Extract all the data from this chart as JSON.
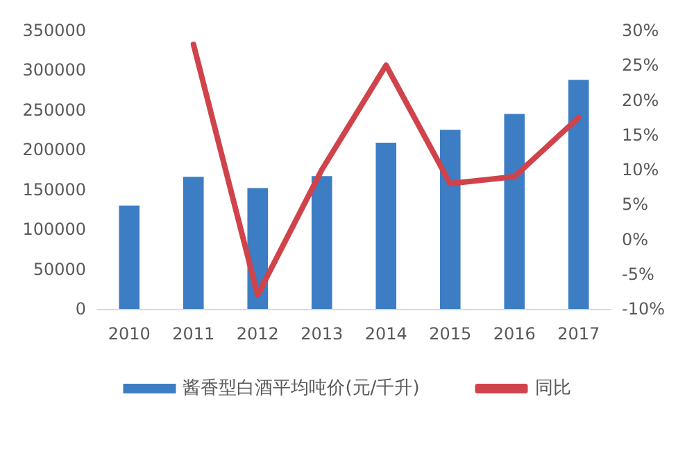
{
  "chart_data": {
    "type": "bar",
    "categories": [
      "2010",
      "2011",
      "2012",
      "2013",
      "2014",
      "2015",
      "2016",
      "2017"
    ],
    "series": [
      {
        "name": "酱香型白酒平均吨价(元/千升)",
        "color": "#3d7dc3",
        "values": [
          130000,
          166000,
          152000,
          167000,
          209000,
          225000,
          245000,
          288000
        ]
      },
      {
        "name": "同比",
        "type": "line",
        "axis": "y2",
        "color": "#d0434b",
        "values": [
          null,
          28,
          -8,
          10,
          25,
          8,
          9,
          17.5
        ]
      }
    ],
    "ylim": [
      0,
      350000
    ],
    "yticks": [
      0,
      50000,
      100000,
      150000,
      200000,
      250000,
      300000,
      350000
    ],
    "y2lim": [
      -10,
      30
    ],
    "y2ticks": [
      {
        "value": -10,
        "label": "-10%"
      },
      {
        "value": -5,
        "label": "-5%"
      },
      {
        "value": 0,
        "label": "0%"
      },
      {
        "value": 5,
        "label": "5%"
      },
      {
        "value": 10,
        "label": "10%"
      },
      {
        "value": 15,
        "label": "15%"
      },
      {
        "value": 20,
        "label": "20%"
      },
      {
        "value": 25,
        "label": "25%"
      },
      {
        "value": 30,
        "label": "30%"
      }
    ],
    "grid": false,
    "legend": "bottom",
    "marker": "none",
    "line_style": "solid"
  }
}
